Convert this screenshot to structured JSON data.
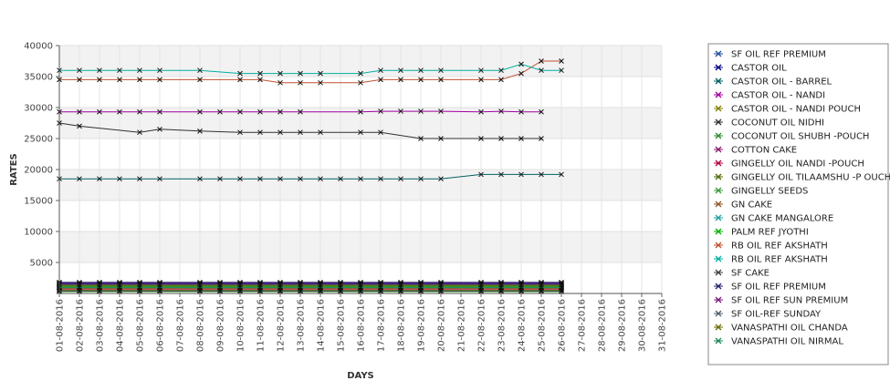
{
  "chart_data": {
    "type": "line",
    "xlabel": "DAYS",
    "ylabel": "RATES",
    "ylim": [
      0,
      40000
    ],
    "yticks": [
      5000,
      10000,
      15000,
      20000,
      25000,
      30000,
      35000,
      40000
    ],
    "grid": "on",
    "legend_position": "right",
    "categories": [
      "01-08-2016",
      "02-08-2016",
      "03-08-2016",
      "04-08-2016",
      "05-08-2016",
      "06-08-2016",
      "07-08-2016",
      "08-08-2016",
      "09-08-2016",
      "10-08-2016",
      "11-08-2016",
      "12-08-2016",
      "13-08-2016",
      "14-08-2016",
      "15-08-2016",
      "16-08-2016",
      "17-08-2016",
      "18-08-2016",
      "19-08-2016",
      "20-08-2016",
      "21-08-2016",
      "22-08-2016",
      "23-08-2016",
      "24-08-2016",
      "25-08-2016",
      "26-08-2016",
      "27-08-2016",
      "28-08-2016",
      "29-08-2016",
      "30-08-2016",
      "31-08-2016"
    ],
    "series": [
      {
        "name": "SF OIL REF PREMIUM",
        "color": "#1f4e9c",
        "values": [
          1700,
          1700,
          1700,
          1700,
          1700,
          1700,
          null,
          1700,
          1700,
          1700,
          1700,
          1700,
          1700,
          1700,
          1700,
          1700,
          1700,
          1700,
          1700,
          1700,
          null,
          1700,
          1700,
          1700,
          1700,
          1700,
          null,
          null,
          null,
          null,
          null
        ]
      },
      {
        "name": "CASTOR OIL",
        "color": "#000080",
        "values": [
          1500,
          1500,
          1500,
          1500,
          1500,
          1500,
          null,
          1500,
          1500,
          1500,
          1500,
          1500,
          1500,
          1500,
          1500,
          1500,
          1500,
          1500,
          1500,
          1500,
          null,
          1500,
          1500,
          1500,
          1500,
          1500,
          null,
          null,
          null,
          null,
          null
        ]
      },
      {
        "name": "CASTOR OIL - BARREL",
        "color": "#006060",
        "values": [
          18500,
          18500,
          18500,
          18500,
          18500,
          18500,
          null,
          18500,
          18500,
          18500,
          18500,
          18500,
          18500,
          18500,
          18500,
          18500,
          18500,
          18500,
          18500,
          18500,
          null,
          19200,
          19200,
          19200,
          19200,
          19200,
          null,
          null,
          null,
          null,
          null
        ]
      },
      {
        "name": "CASTOR OIL - NANDI",
        "color": "#a000a0",
        "values": [
          29300,
          29300,
          29300,
          29300,
          29300,
          29300,
          null,
          29300,
          29300,
          29300,
          29300,
          29300,
          29300,
          null,
          null,
          29300,
          29400,
          29400,
          29400,
          29400,
          null,
          29300,
          29400,
          29300,
          29300,
          null,
          null,
          null,
          null,
          null,
          null
        ]
      },
      {
        "name": "CASTOR OIL - NANDI POUCH",
        "color": "#808000",
        "values": [
          1100,
          1100,
          1100,
          1100,
          1100,
          1100,
          null,
          1100,
          1100,
          1100,
          1100,
          1100,
          1100,
          1100,
          1100,
          1100,
          1100,
          1100,
          1100,
          1100,
          null,
          1100,
          1100,
          1100,
          1100,
          1100,
          null,
          null,
          null,
          null,
          null
        ]
      },
      {
        "name": "COCONUT OIL NIDHI",
        "color": "#303030",
        "values": [
          27500,
          27000,
          null,
          null,
          26000,
          26500,
          null,
          26200,
          null,
          26000,
          26000,
          26000,
          26000,
          26000,
          null,
          26000,
          26000,
          null,
          25000,
          25000,
          null,
          25000,
          25000,
          25000,
          25000,
          null,
          null,
          null,
          null,
          null,
          null
        ]
      },
      {
        "name": "COCONUT OIL SHUBH -POUCH",
        "color": "#2e8b2e",
        "values": [
          900,
          900,
          900,
          900,
          900,
          900,
          null,
          900,
          900,
          900,
          900,
          900,
          900,
          900,
          900,
          900,
          900,
          900,
          900,
          900,
          null,
          900,
          900,
          900,
          900,
          900,
          null,
          null,
          null,
          null,
          null
        ]
      },
      {
        "name": "COTTON CAKE",
        "color": "#8b1a6b",
        "values": [
          1300,
          1300,
          1300,
          1300,
          1300,
          1300,
          null,
          1300,
          1300,
          1300,
          1300,
          1300,
          1300,
          1300,
          1300,
          1300,
          1300,
          1300,
          1300,
          1300,
          null,
          1300,
          1300,
          1300,
          1300,
          1300,
          null,
          null,
          null,
          null,
          null
        ]
      },
      {
        "name": "GINGELLY OIL NANDI -POUCH",
        "color": "#b0003a",
        "values": [
          700,
          700,
          700,
          700,
          700,
          700,
          null,
          700,
          700,
          700,
          700,
          700,
          700,
          700,
          700,
          700,
          700,
          700,
          700,
          700,
          null,
          700,
          700,
          700,
          700,
          700,
          null,
          null,
          null,
          null,
          null
        ]
      },
      {
        "name": "GINGELLY OIL TILAAMSHU -P OUCH",
        "color": "#4a6a00",
        "values": [
          500,
          500,
          500,
          500,
          500,
          500,
          null,
          500,
          500,
          500,
          500,
          500,
          500,
          500,
          500,
          500,
          500,
          500,
          500,
          500,
          null,
          500,
          500,
          500,
          500,
          500,
          null,
          null,
          null,
          null,
          null
        ]
      },
      {
        "name": "GINGELLY SEEDS",
        "color": "#3a9a3a",
        "values": [
          300,
          300,
          300,
          300,
          300,
          300,
          null,
          300,
          300,
          300,
          300,
          300,
          300,
          300,
          300,
          300,
          300,
          300,
          300,
          300,
          null,
          300,
          300,
          300,
          300,
          300,
          null,
          null,
          null,
          null,
          null
        ]
      },
      {
        "name": "GN CAKE",
        "color": "#8b5a2b",
        "values": [
          800,
          800,
          800,
          800,
          800,
          800,
          null,
          800,
          800,
          800,
          800,
          800,
          800,
          800,
          800,
          800,
          800,
          800,
          800,
          800,
          null,
          800,
          800,
          800,
          800,
          800,
          null,
          null,
          null,
          null,
          null
        ]
      },
      {
        "name": "GN CAKE MANGALORE",
        "color": "#20a0a0",
        "values": [
          1000,
          1000,
          1000,
          1000,
          1000,
          1000,
          null,
          1000,
          1000,
          1000,
          1000,
          1000,
          1000,
          1000,
          1000,
          1000,
          1000,
          1000,
          1000,
          1000,
          null,
          1000,
          1000,
          1000,
          1000,
          1000,
          null,
          null,
          null,
          null,
          null
        ]
      },
      {
        "name": "PALM REF JYOTHI",
        "color": "#00b000",
        "values": [
          1200,
          1200,
          1200,
          1200,
          1200,
          1200,
          null,
          1200,
          1200,
          1200,
          1200,
          1200,
          1200,
          1200,
          1200,
          1200,
          1200,
          1200,
          1200,
          1200,
          null,
          1200,
          1200,
          1200,
          1200,
          1200,
          null,
          null,
          null,
          null,
          null
        ]
      },
      {
        "name": "RB OIL REF  AKSHATH",
        "color": "#c05030",
        "values": [
          34500,
          34500,
          34500,
          34500,
          34500,
          34500,
          null,
          34500,
          null,
          34500,
          34500,
          34000,
          34000,
          34000,
          null,
          34000,
          34500,
          34500,
          34500,
          34500,
          null,
          34500,
          34500,
          35500,
          37500,
          37500,
          null,
          null,
          null,
          null,
          null
        ]
      },
      {
        "name": "RB OIL REF AKSHATH",
        "color": "#00b0a0",
        "values": [
          36000,
          36000,
          36000,
          36000,
          36000,
          36000,
          null,
          36000,
          null,
          35500,
          35500,
          35500,
          35500,
          35500,
          null,
          35500,
          36000,
          36000,
          36000,
          36000,
          null,
          36000,
          36000,
          37000,
          36000,
          36000,
          null,
          null,
          null,
          null,
          null
        ]
      },
      {
        "name": "SF CAKE",
        "color": "#404040",
        "values": [
          400,
          400,
          400,
          400,
          400,
          400,
          null,
          400,
          400,
          400,
          400,
          400,
          400,
          400,
          400,
          400,
          400,
          400,
          400,
          400,
          null,
          400,
          400,
          400,
          400,
          400,
          null,
          null,
          null,
          null,
          null
        ]
      },
      {
        "name": "SF OIL REF PREMIUM",
        "color": "#20206a",
        "values": [
          1800,
          1800,
          1800,
          1800,
          1800,
          1800,
          null,
          1800,
          1800,
          1800,
          1800,
          1800,
          1800,
          1800,
          1800,
          1800,
          1800,
          1800,
          1800,
          1800,
          null,
          1800,
          1800,
          1800,
          1800,
          1800,
          null,
          null,
          null,
          null,
          null
        ]
      },
      {
        "name": "SF OIL REF SUN PREMIUM",
        "color": "#7a1a7a",
        "values": [
          1600,
          1600,
          1600,
          1600,
          1600,
          1600,
          null,
          1600,
          1600,
          1600,
          1600,
          1600,
          1600,
          1600,
          1600,
          1600,
          1600,
          1600,
          1600,
          1600,
          null,
          1600,
          1600,
          1600,
          1600,
          1600,
          null,
          null,
          null,
          null,
          null
        ]
      },
      {
        "name": "SF OIL-REF SUNDAY",
        "color": "#506070",
        "values": [
          1400,
          1400,
          1400,
          1400,
          1400,
          1400,
          null,
          1400,
          1400,
          1400,
          1400,
          1400,
          1400,
          1400,
          1400,
          1400,
          1400,
          1400,
          1400,
          1400,
          null,
          1400,
          1400,
          1400,
          1400,
          1400,
          null,
          null,
          null,
          null,
          null
        ]
      },
      {
        "name": "VANASPATHI OIL CHANDA",
        "color": "#6a6a00",
        "values": [
          1300,
          1300,
          1300,
          1300,
          1300,
          1300,
          null,
          1300,
          1300,
          1300,
          1300,
          1300,
          1300,
          1300,
          1300,
          1300,
          1300,
          1300,
          1300,
          1300,
          null,
          1300,
          1300,
          1300,
          1300,
          1300,
          null,
          null,
          null,
          null,
          null
        ]
      },
      {
        "name": "VANASPATHI OIL NIRMAL",
        "color": "#1a8a5a",
        "values": [
          1000,
          1000,
          1000,
          1000,
          1000,
          1000,
          null,
          1000,
          1000,
          1000,
          1000,
          1000,
          1000,
          1000,
          1000,
          1000,
          1000,
          1000,
          1000,
          1000,
          null,
          1000,
          1000,
          1000,
          1000,
          1000,
          null,
          null,
          null,
          null,
          null
        ]
      }
    ]
  }
}
